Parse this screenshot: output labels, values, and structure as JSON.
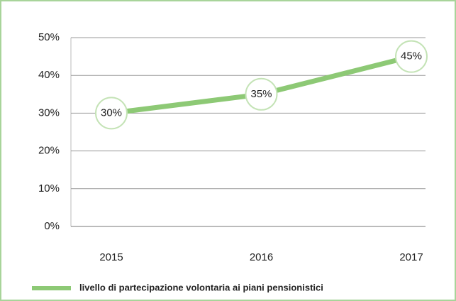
{
  "chart_data": {
    "type": "line",
    "categories": [
      "2015",
      "2016",
      "2017"
    ],
    "series": [
      {
        "name": "livello di partecipazione volontaria ai piani pensionistici",
        "color": "#8dc975",
        "values": [
          30,
          35,
          45
        ],
        "value_labels": [
          "30%",
          "35%",
          "45%"
        ]
      }
    ],
    "ylim": [
      0,
      50
    ],
    "yticks": [
      {
        "value": 0,
        "label": "0%"
      },
      {
        "value": 10,
        "label": "10%"
      },
      {
        "value": 20,
        "label": "20%"
      },
      {
        "value": 30,
        "label": "30%"
      },
      {
        "value": 40,
        "label": "40%"
      },
      {
        "value": 50,
        "label": "50%"
      }
    ],
    "grid": true,
    "legend": "bottom"
  }
}
